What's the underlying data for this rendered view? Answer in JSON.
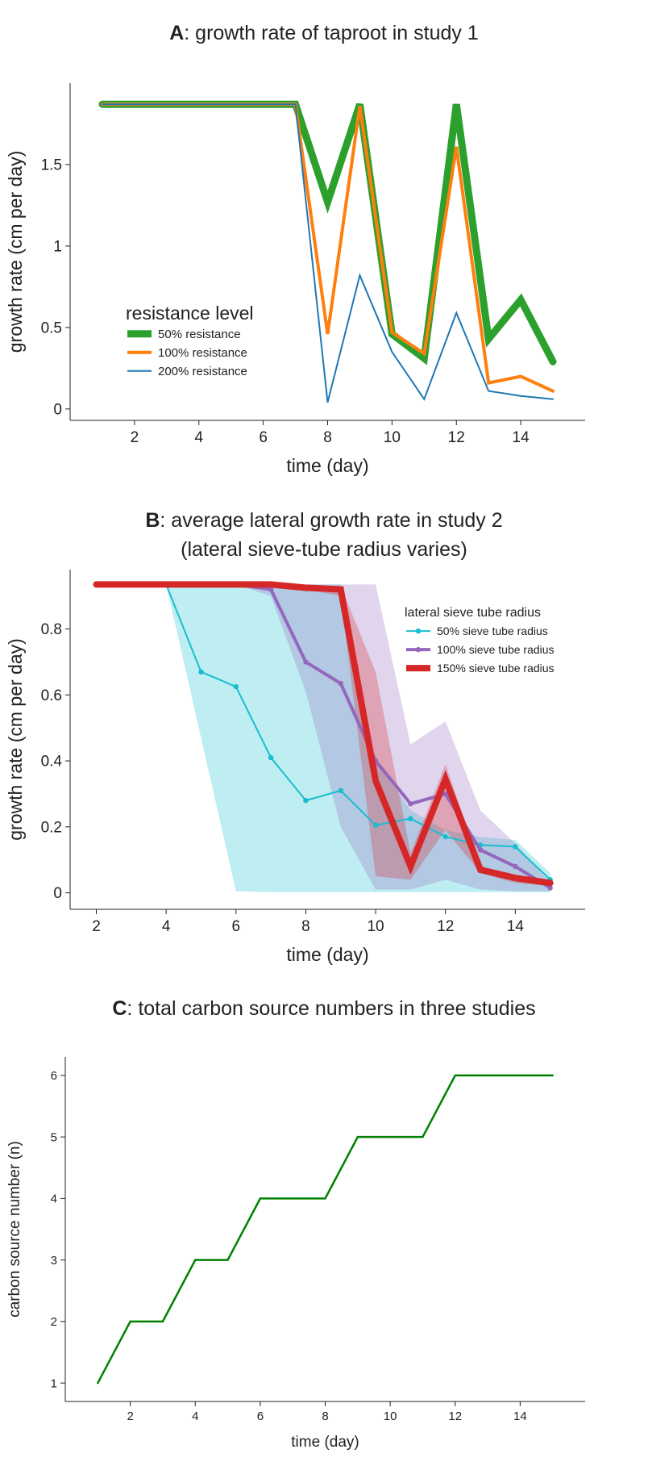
{
  "charts": [
    {
      "panel": "A",
      "title_letter": "A",
      "title_rest": ": growth rate of taproot in study 1",
      "title_line2": "",
      "chart_data": {
        "type": "line",
        "title": "A: growth rate of taproot in study 1",
        "xlabel": "time (day)",
        "ylabel": "growth rate (cm per day)",
        "xlim": [
          0,
          16
        ],
        "ylim": [
          -0.07,
          2.0
        ],
        "xticks": [
          2,
          4,
          6,
          8,
          10,
          12,
          14
        ],
        "yticks": [
          0,
          0.5,
          1,
          1.5
        ],
        "ytick_labels": [
          "0",
          "0.5",
          "1",
          "1.5"
        ],
        "grid": false,
        "legend_title": "resistance level",
        "legend_position": "left",
        "x": [
          1,
          2,
          3,
          4,
          5,
          6,
          7,
          8,
          9,
          10,
          11,
          12,
          13,
          14,
          15
        ],
        "series": [
          {
            "name": "50% resistance",
            "color": "#2ca02c",
            "width": 9,
            "values": [
              1.87,
              1.87,
              1.87,
              1.87,
              1.87,
              1.87,
              1.87,
              1.27,
              1.87,
              0.46,
              0.31,
              1.87,
              0.43,
              0.67,
              0.29
            ]
          },
          {
            "name": "100% resistance",
            "color": "#ff7f0e",
            "width": 4,
            "values": [
              1.87,
              1.87,
              1.87,
              1.87,
              1.87,
              1.87,
              1.87,
              0.46,
              1.86,
              0.47,
              0.34,
              1.61,
              0.16,
              0.2,
              0.11
            ]
          },
          {
            "name": "200% resistance",
            "color": "#1f77b4",
            "width": 2,
            "values": [
              1.87,
              1.87,
              1.87,
              1.87,
              1.87,
              1.87,
              1.87,
              0.04,
              0.82,
              0.35,
              0.06,
              0.59,
              0.11,
              0.08,
              0.06
            ]
          }
        ]
      }
    },
    {
      "panel": "B",
      "title_letter": "B",
      "title_rest": ": average lateral growth rate in study 2",
      "title_line2": "(lateral sieve-tube radius varies)",
      "chart_data": {
        "type": "line",
        "title": "B: average lateral growth rate in study 2 (lateral sieve-tube radius varies)",
        "xlabel": "time (day)",
        "ylabel": "growth rate (cm per day)",
        "xlim": [
          1.25,
          16
        ],
        "ylim": [
          -0.05,
          0.98
        ],
        "xticks": [
          2,
          4,
          6,
          8,
          10,
          12,
          14
        ],
        "yticks": [
          0,
          0.2,
          0.4,
          0.6,
          0.8
        ],
        "ytick_labels": [
          "0",
          "0.2",
          "0.4",
          "0.6",
          "0.8"
        ],
        "grid": false,
        "legend_title": "lateral sieve tube radius",
        "legend_position": "top-right",
        "x": [
          2,
          3,
          4,
          5,
          6,
          7,
          8,
          9,
          10,
          11,
          12,
          13,
          14,
          15
        ],
        "series": [
          {
            "name": "50% sieve tube radius",
            "color": "#17becf",
            "width": 2,
            "markers": true,
            "values": [
              0.935,
              0.935,
              0.935,
              0.67,
              0.625,
              0.41,
              0.28,
              0.31,
              0.205,
              0.225,
              0.17,
              0.145,
              0.14,
              0.04
            ],
            "band_low": [
              0.935,
              0.935,
              0.935,
              0.47,
              0.005,
              0.002,
              0.002,
              0.002,
              0.002,
              0.002,
              0.002,
              0.002,
              0.002,
              0.002
            ],
            "band_high": [
              0.935,
              0.935,
              0.935,
              0.935,
              0.935,
              0.935,
              0.935,
              0.935,
              0.4,
              0.25,
              0.19,
              0.17,
              0.16,
              0.06
            ],
            "band_color": "#17becf"
          },
          {
            "name": "100% sieve tube radius",
            "color": "#9467bd",
            "width": 4,
            "markers": true,
            "values": [
              0.935,
              0.935,
              0.935,
              0.935,
              0.935,
              0.92,
              0.7,
              0.635,
              0.4,
              0.27,
              0.3,
              0.13,
              0.08,
              0.015
            ],
            "band_low": [
              0.935,
              0.935,
              0.935,
              0.935,
              0.935,
              0.9,
              0.61,
              0.2,
              0.01,
              0.01,
              0.04,
              0.01,
              0.005,
              0.005
            ],
            "band_high": [
              0.935,
              0.935,
              0.935,
              0.935,
              0.935,
              0.935,
              0.935,
              0.935,
              0.935,
              0.45,
              0.52,
              0.25,
              0.15,
              0.03
            ],
            "band_color": "#9467bd"
          },
          {
            "name": "150% sieve tube radius",
            "color": "#d62728",
            "width": 8,
            "markers": false,
            "values": [
              0.935,
              0.935,
              0.935,
              0.935,
              0.935,
              0.935,
              0.925,
              0.92,
              0.34,
              0.08,
              0.345,
              0.07,
              0.045,
              0.03
            ],
            "band_low": [
              0.935,
              0.935,
              0.935,
              0.935,
              0.935,
              0.935,
              0.92,
              0.9,
              0.05,
              0.04,
              0.19,
              0.06,
              0.03,
              0.02
            ],
            "band_high": [
              0.935,
              0.935,
              0.935,
              0.935,
              0.935,
              0.935,
              0.93,
              0.93,
              0.67,
              0.12,
              0.39,
              0.08,
              0.05,
              0.035
            ],
            "band_color": "#d62728"
          }
        ]
      }
    },
    {
      "panel": "C",
      "title_letter": "C",
      "title_rest": ": total carbon source numbers in three studies",
      "title_line2": "",
      "chart_data": {
        "type": "line",
        "title": "C: total carbon source numbers in three studies",
        "xlabel": "time (day)",
        "ylabel": "carbon source number (n)",
        "xlim": [
          0,
          16
        ],
        "ylim": [
          0.7,
          6.3
        ],
        "xticks": [
          2,
          4,
          6,
          8,
          10,
          12,
          14
        ],
        "yticks": [
          1,
          2,
          3,
          4,
          5,
          6
        ],
        "ytick_labels": [
          "1",
          "2",
          "3",
          "4",
          "5",
          "6"
        ],
        "grid": false,
        "legend_title": "",
        "legend_position": "none",
        "x": [
          1,
          2,
          3,
          4,
          5,
          6,
          7,
          8,
          9,
          10,
          11,
          12,
          13,
          14,
          15
        ],
        "series": [
          {
            "name": "",
            "color": "#008000",
            "width": 2.5,
            "values": [
              1,
              2,
              2,
              3,
              3,
              4,
              4,
              4,
              5,
              5,
              5,
              6,
              6,
              6,
              6
            ]
          }
        ]
      }
    }
  ]
}
